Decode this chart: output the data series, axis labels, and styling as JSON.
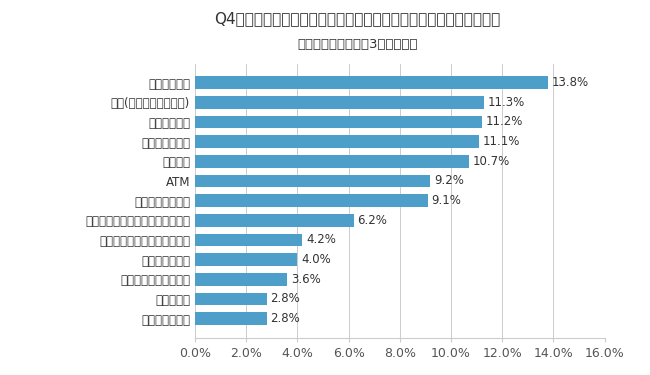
{
  "title": "Q4：「道の駅」にこんなサービスがあればと思うものは何ですか？",
  "subtitle": "（複数回答可。最大3つまで。）",
  "categories": [
    "ペット関連施設",
    "マッサージ",
    "携帯電話充電サービス",
    "こども向け施設",
    "その他現状で満足・特になし",
    "インターネット通信等の環境整備",
    "ドリンクサービス",
    "ATM",
    "仮眠施設",
    "営業時間の延長",
    "各種情報提供",
    "給油(ガソリンスタンド)",
    "入浴関連施設"
  ],
  "values": [
    2.8,
    2.8,
    3.6,
    4.0,
    4.2,
    6.2,
    9.1,
    9.2,
    10.7,
    11.1,
    11.2,
    11.3,
    13.8
  ],
  "bar_color": "#4d9fca",
  "background_color": "#ffffff",
  "xlim": [
    0,
    16.0
  ],
  "xticks": [
    0.0,
    2.0,
    4.0,
    6.0,
    8.0,
    10.0,
    12.0,
    14.0,
    16.0
  ],
  "xtick_labels": [
    "0.0%",
    "2.0%",
    "4.0%",
    "6.0%",
    "8.0%",
    "10.0%",
    "12.0%",
    "14.0%",
    "16.0%"
  ],
  "title_fontsize": 11,
  "subtitle_fontsize": 9.5,
  "label_fontsize": 8.5,
  "tick_fontsize": 9,
  "value_fontsize": 8.5
}
